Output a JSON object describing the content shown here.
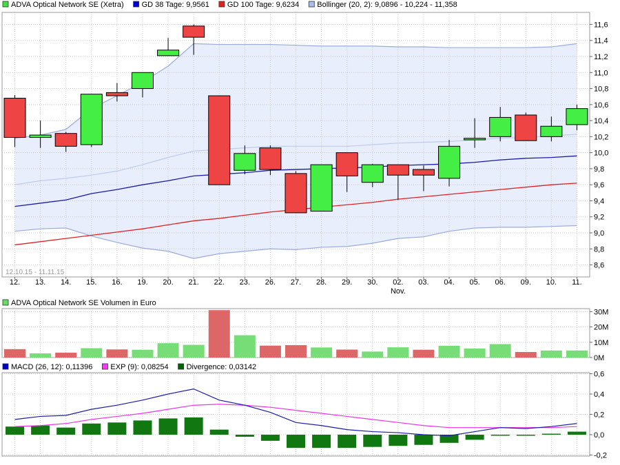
{
  "legend_main": [
    {
      "label": "ADVA Optical Network SE (Xetra)",
      "color": "#44dd44"
    },
    {
      "label": "GD 38 Tage: 9,9561",
      "color": "#0000cc"
    },
    {
      "label": "GD 100 Tage: 9,6234",
      "color": "#dd2222"
    },
    {
      "label": "Bollinger (20, 2): 9,0896 - 10,224 - 11,358",
      "color": "#aabbee"
    }
  ],
  "legend_volume": [
    {
      "label": "ADVA Optical Network SE Volumen in Euro",
      "color": "#66dd66"
    }
  ],
  "legend_macd": [
    {
      "label": "MACD (26, 12): 0,11396",
      "color": "#0000cc"
    },
    {
      "label": "EXP (9): 0,08254",
      "color": "#ff33ff"
    },
    {
      "label": "Divergence: 0,03142",
      "color": "#006600"
    }
  ],
  "date_range": "12.10.15 - 11.11.15",
  "month_label": "Nov.",
  "colors": {
    "up": "#44ee44",
    "down": "#ee4444",
    "volume_up": "#77dd77",
    "volume_down": "#dd6666",
    "gd38": "#1a1aaa",
    "gd100": "#dd2222",
    "bollinger": "#99aadd",
    "bollinger_mid": "#bbccee",
    "bollinger_fill": "#e8eefc",
    "macd": "#1a1aaa",
    "exp": "#ee33ee",
    "divergence": "#117711",
    "grid": "#c8c8c8"
  },
  "chart_data": [
    {
      "type": "candlestick",
      "categories": [
        "12.",
        "13.",
        "14.",
        "15.",
        "16.",
        "19.",
        "20.",
        "21.",
        "22.",
        "23.",
        "26.",
        "27.",
        "28.",
        "29.",
        "30.",
        "02.",
        "03.",
        "04.",
        "05.",
        "06.",
        "09.",
        "10.",
        "11."
      ],
      "ohlc": [
        [
          10.68,
          10.72,
          10.07,
          10.19
        ],
        [
          10.19,
          10.4,
          10.06,
          10.22
        ],
        [
          10.24,
          10.26,
          10.01,
          10.08
        ],
        [
          10.1,
          10.73,
          10.07,
          10.73
        ],
        [
          10.75,
          10.87,
          10.64,
          10.71
        ],
        [
          10.8,
          11.0,
          10.69,
          11.0
        ],
        [
          11.21,
          11.43,
          11.21,
          11.28
        ],
        [
          11.58,
          11.6,
          11.22,
          11.44
        ],
        [
          10.71,
          10.71,
          9.6,
          9.6
        ],
        [
          9.78,
          10.09,
          9.73,
          9.99
        ],
        [
          10.06,
          10.09,
          9.72,
          9.79
        ],
        [
          9.74,
          9.77,
          9.26,
          9.25
        ],
        [
          9.27,
          9.85,
          9.27,
          9.85
        ],
        [
          10.0,
          10.0,
          9.51,
          9.71
        ],
        [
          9.63,
          9.86,
          9.57,
          9.85
        ],
        [
          9.85,
          9.85,
          9.41,
          9.72
        ],
        [
          9.79,
          9.84,
          9.52,
          9.72
        ],
        [
          9.68,
          10.16,
          9.58,
          10.08
        ],
        [
          10.16,
          10.43,
          10.06,
          10.18
        ],
        [
          10.2,
          10.57,
          10.14,
          10.44
        ],
        [
          10.47,
          10.5,
          10.15,
          10.15
        ],
        [
          10.2,
          10.45,
          10.14,
          10.33
        ],
        [
          10.35,
          10.6,
          10.28,
          10.55
        ]
      ],
      "gd38": [
        9.33,
        9.37,
        9.41,
        9.49,
        9.54,
        9.6,
        9.65,
        9.71,
        9.73,
        9.75,
        9.78,
        9.79,
        9.8,
        9.81,
        9.82,
        9.84,
        9.85,
        9.86,
        9.88,
        9.91,
        9.93,
        9.94,
        9.96
      ],
      "gd100": [
        8.85,
        8.89,
        8.93,
        8.97,
        9.01,
        9.05,
        9.1,
        9.15,
        9.18,
        9.22,
        9.26,
        9.29,
        9.32,
        9.35,
        9.38,
        9.42,
        9.45,
        9.48,
        9.51,
        9.54,
        9.57,
        9.6,
        9.62
      ],
      "bollinger_upper": [
        10.18,
        10.22,
        10.29,
        10.55,
        10.71,
        10.88,
        11.08,
        11.36,
        11.35,
        11.35,
        11.35,
        11.34,
        11.33,
        11.33,
        11.33,
        11.32,
        11.32,
        11.31,
        11.31,
        11.31,
        11.31,
        11.32,
        11.36
      ],
      "bollinger_mid": [
        9.6,
        9.65,
        9.68,
        9.72,
        9.77,
        9.85,
        9.94,
        10.02,
        10.04,
        10.06,
        10.08,
        10.08,
        10.08,
        10.08,
        10.1,
        10.12,
        10.13,
        10.14,
        10.16,
        10.18,
        10.19,
        10.21,
        10.23
      ],
      "bollinger_lower": [
        9.02,
        9.05,
        9.06,
        8.96,
        8.88,
        8.81,
        8.77,
        8.68,
        8.74,
        8.77,
        8.8,
        8.79,
        8.82,
        8.83,
        8.87,
        8.93,
        8.95,
        9.02,
        9.06,
        9.07,
        9.07,
        9.08,
        9.09
      ],
      "yticks": [
        8.6,
        8.8,
        9.0,
        9.2,
        9.4,
        9.6,
        9.8,
        10.0,
        10.2,
        10.4,
        10.6,
        10.8,
        11.0,
        11.2,
        11.4,
        11.6
      ],
      "ytick_labels": [
        "8,6",
        "8,8",
        "9,0",
        "9,2",
        "9,4",
        "9,6",
        "9,8",
        "10,0",
        "10,2",
        "10,4",
        "10,6",
        "10,8",
        "11,0",
        "11,2",
        "11,4",
        "11,6"
      ],
      "ylim": [
        8.45,
        11.75
      ],
      "grid": true,
      "legend": "top-left"
    },
    {
      "type": "bar",
      "title": "ADVA Optical Network SE Volumen in Euro",
      "values_millions": [
        5.5,
        2.7,
        3.2,
        6.1,
        5.3,
        5.1,
        9.4,
        8.3,
        31.0,
        14.6,
        7.8,
        8.1,
        6.6,
        5.2,
        3.9,
        6.7,
        5.1,
        7.7,
        5.9,
        8.8,
        3.6,
        4.6,
        4.6
      ],
      "direction": [
        "down",
        "up",
        "down",
        "up",
        "down",
        "up",
        "up",
        "up",
        "down",
        "up",
        "down",
        "down",
        "up",
        "down",
        "up",
        "up",
        "down",
        "up",
        "up",
        "up",
        "down",
        "up",
        "up"
      ],
      "yticks": [
        0,
        10,
        20,
        30
      ],
      "ytick_labels": [
        "0M",
        "10M",
        "20M",
        "30M"
      ],
      "ylim": [
        0,
        32
      ]
    },
    {
      "type": "line",
      "macd": [
        0.15,
        0.18,
        0.19,
        0.25,
        0.29,
        0.34,
        0.4,
        0.45,
        0.34,
        0.29,
        0.22,
        0.12,
        0.09,
        0.05,
        0.03,
        0.02,
        0.0,
        -0.01,
        0.03,
        0.07,
        0.06,
        0.08,
        0.11
      ],
      "exp": [
        0.08,
        0.09,
        0.11,
        0.15,
        0.18,
        0.21,
        0.25,
        0.29,
        0.3,
        0.29,
        0.27,
        0.24,
        0.21,
        0.18,
        0.15,
        0.12,
        0.09,
        0.07,
        0.07,
        0.07,
        0.07,
        0.07,
        0.08
      ],
      "divergence": [
        0.08,
        0.09,
        0.07,
        0.11,
        0.12,
        0.14,
        0.16,
        0.17,
        0.05,
        -0.02,
        -0.06,
        -0.13,
        -0.13,
        -0.13,
        -0.12,
        -0.11,
        -0.1,
        -0.08,
        -0.05,
        -0.01,
        -0.01,
        0.01,
        0.03
      ],
      "yticks": [
        -0.2,
        0.0,
        0.2,
        0.4,
        0.6
      ],
      "ytick_labels": [
        "-0,2",
        "0,0",
        "0,2",
        "0,4",
        "0,6"
      ],
      "ylim": [
        -0.21,
        0.61
      ]
    }
  ]
}
